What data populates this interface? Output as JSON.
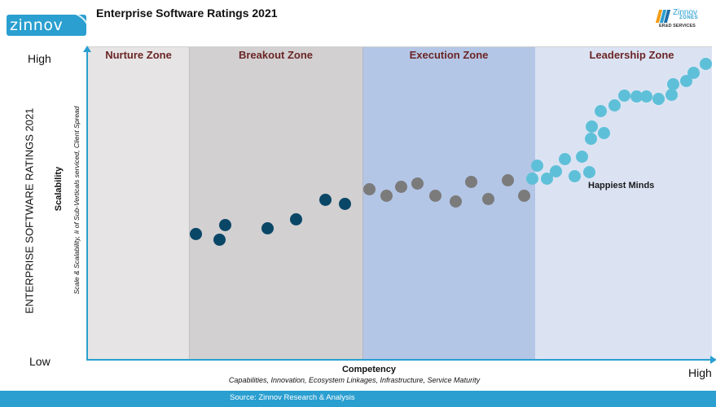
{
  "header": {
    "title": "Enterprise Software Ratings 2021",
    "logo_left_text": "zinnov",
    "logo_right_brand": "Zinnov",
    "logo_right_zones": "ZONES",
    "logo_right_sub": "ER&D SERVICES"
  },
  "colors": {
    "axis": "#2a9fd0",
    "nurture_bg": "#e6e4e5",
    "breakout_bg": "#d2d0d1",
    "execution_bg": "#b4c6e6",
    "leadership_bg": "#dbe3f3",
    "zone_label": "#6b2525",
    "footer": "#2a9fd0",
    "breakout_dots": "#0a4767",
    "execution_dots": "#7b7b7b",
    "leadership_dots": "#5ec0d8"
  },
  "footer": {
    "source": "Source: Zinnov  Research & Analysis"
  },
  "chart_data": {
    "type": "scatter",
    "title": "Enterprise Software Ratings 2021",
    "xlabel": "Competency",
    "xlabel_sub": "Capabilities, Innovation, Ecosystem Linkages, Infrastructure, Service Maturity",
    "ylabel": "Scalability",
    "ylabel_sub": "Scale & Scalability, # of Sub-Verticals serviced, Client Spread",
    "y_side_title": "ENTERPRISE SOFTWARE RATINGS 2021",
    "y_high": "High",
    "y_low": "Low",
    "x_high": "High",
    "xlim": [
      0,
      100
    ],
    "ylim": [
      0,
      100
    ],
    "grid": false,
    "zones": [
      {
        "name": "Nurture Zone",
        "x_from": 0,
        "x_to": 16
      },
      {
        "name": "Breakout Zone",
        "x_from": 16,
        "x_to": 44
      },
      {
        "name": "Execution Zone",
        "x_from": 44,
        "x_to": 71.5
      },
      {
        "name": "Leadership Zone",
        "x_from": 71.5,
        "x_to": 100
      }
    ],
    "annotation": "Happiest Minds",
    "series": [
      {
        "zone": "Breakout Zone",
        "points": [
          [
            17.5,
            40.3
          ],
          [
            21.3,
            38.5
          ],
          [
            22.2,
            43.2
          ],
          [
            29.1,
            42.2
          ],
          [
            33.7,
            45.0
          ],
          [
            38.4,
            51.3
          ],
          [
            41.6,
            50.0
          ]
        ]
      },
      {
        "zone": "Execution Zone",
        "points": [
          [
            45.6,
            54.8
          ],
          [
            48.3,
            52.5
          ],
          [
            50.7,
            55.5
          ],
          [
            53.4,
            56.6
          ],
          [
            56.3,
            52.5
          ],
          [
            59.6,
            50.8
          ],
          [
            62.1,
            57.0
          ],
          [
            64.8,
            51.6
          ],
          [
            68.0,
            57.5
          ],
          [
            70.6,
            52.7
          ]
        ]
      },
      {
        "zone": "Leadership Zone",
        "points": [
          [
            72.0,
            58.0
          ],
          [
            72.7,
            62.3
          ],
          [
            74.3,
            58.0
          ],
          [
            75.8,
            60.5
          ],
          [
            77.3,
            64.4
          ],
          [
            78.8,
            58.8
          ],
          [
            80.0,
            65.1
          ],
          [
            81.2,
            60.2
          ],
          [
            81.5,
            70.9
          ],
          [
            81.6,
            74.8
          ],
          [
            83.0,
            79.7
          ],
          [
            83.6,
            72.5
          ],
          [
            85.3,
            81.3
          ],
          [
            86.9,
            84.6
          ],
          [
            88.9,
            84.3
          ],
          [
            90.5,
            84.3
          ],
          [
            92.4,
            83.5
          ],
          [
            94.5,
            84.8
          ],
          [
            94.8,
            88.2
          ],
          [
            96.9,
            89.1
          ],
          [
            98.1,
            91.7
          ],
          [
            100.0,
            94.8
          ]
        ]
      }
    ]
  }
}
